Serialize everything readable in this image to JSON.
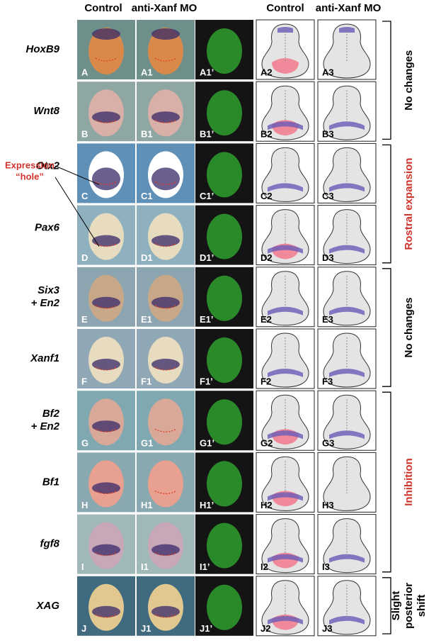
{
  "headers": [
    "Control",
    "anti-Xanf MO",
    "Control",
    "anti-Xanf MO"
  ],
  "rows": [
    {
      "gene": [
        "HoxB9"
      ],
      "panels": [
        "A",
        "A1",
        "A1’",
        "A2",
        "A3"
      ]
    },
    {
      "gene": [
        "Wnt8"
      ],
      "panels": [
        "B",
        "B1",
        "B1’",
        "B2",
        "B3"
      ]
    },
    {
      "gene": [
        "Otx2"
      ],
      "panels": [
        "C",
        "C1",
        "C1’",
        "C2",
        "C3"
      ]
    },
    {
      "gene": [
        "Pax6"
      ],
      "panels": [
        "D",
        "D1",
        "D1’",
        "D2",
        "D3"
      ]
    },
    {
      "gene": [
        "Six3",
        "+ En2"
      ],
      "panels": [
        "E",
        "E1",
        "E1’",
        "E2",
        "E3"
      ]
    },
    {
      "gene": [
        "Xanf1"
      ],
      "panels": [
        "F",
        "F1",
        "F1’",
        "F2",
        "F3"
      ]
    },
    {
      "gene": [
        "Bf2",
        "+ En2"
      ],
      "panels": [
        "G",
        "G1",
        "G1’",
        "G2",
        "G3"
      ]
    },
    {
      "gene": [
        "Bf1"
      ],
      "panels": [
        "H",
        "H1",
        "H1’",
        "H2",
        "H3"
      ]
    },
    {
      "gene": [
        "fgf8"
      ],
      "panels": [
        "I",
        "I1",
        "I1’",
        "I2",
        "I3"
      ]
    },
    {
      "gene": [
        "XAG"
      ],
      "panels": [
        "J",
        "J1",
        "J1’",
        "J2",
        "J3"
      ]
    }
  ],
  "annotation": [
    "Expression",
    "“hole”"
  ],
  "groups": [
    {
      "label": [
        "No changes"
      ],
      "color": "#000000"
    },
    {
      "label": [
        "Rostral expansion"
      ],
      "color": "#d0342c"
    },
    {
      "label": [
        "No changes"
      ],
      "color": "#000000"
    },
    {
      "label": [
        "Inhibition"
      ],
      "color": "#d0342c"
    },
    {
      "label": [
        "Slight",
        "posterior",
        "shift"
      ],
      "color": "#000000"
    }
  ]
}
